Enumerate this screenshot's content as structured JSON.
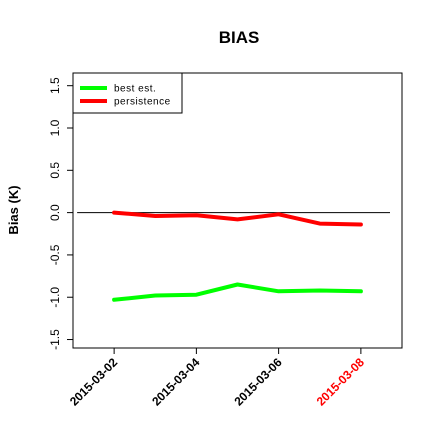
{
  "chart_data": {
    "type": "line",
    "title": "BIAS",
    "xlabel": "",
    "ylabel": "Bias (K)",
    "x": [
      "2015-03-02",
      "2015-03-03",
      "2015-03-04",
      "2015-03-05",
      "2015-03-06",
      "2015-03-07",
      "2015-03-08"
    ],
    "x_tick_labels": [
      "2015-03-02",
      "2015-03-04",
      "2015-03-06",
      "2015-03-08"
    ],
    "highlighted_tick": "2015-03-08",
    "highlight_color": "#ff0000",
    "y_tick_labels": [
      "-1.5",
      "-1.0",
      "-0.5",
      "0.0",
      "0.5",
      "1.0",
      "1.5"
    ],
    "ylim": [
      -1.6,
      1.65
    ],
    "xlim": [
      "2015-03-01",
      "2015-03-09"
    ],
    "reference_line": 0.0,
    "grid": false,
    "legend_position": "top-left",
    "series": [
      {
        "name": "best est.",
        "color": "#00ff00",
        "values": [
          -1.03,
          -0.98,
          -0.97,
          -0.85,
          -0.93,
          -0.92,
          -0.93
        ]
      },
      {
        "name": "persistence",
        "color": "#ff0000",
        "values": [
          0.0,
          -0.04,
          -0.03,
          -0.08,
          -0.02,
          -0.13,
          -0.14
        ]
      }
    ]
  }
}
